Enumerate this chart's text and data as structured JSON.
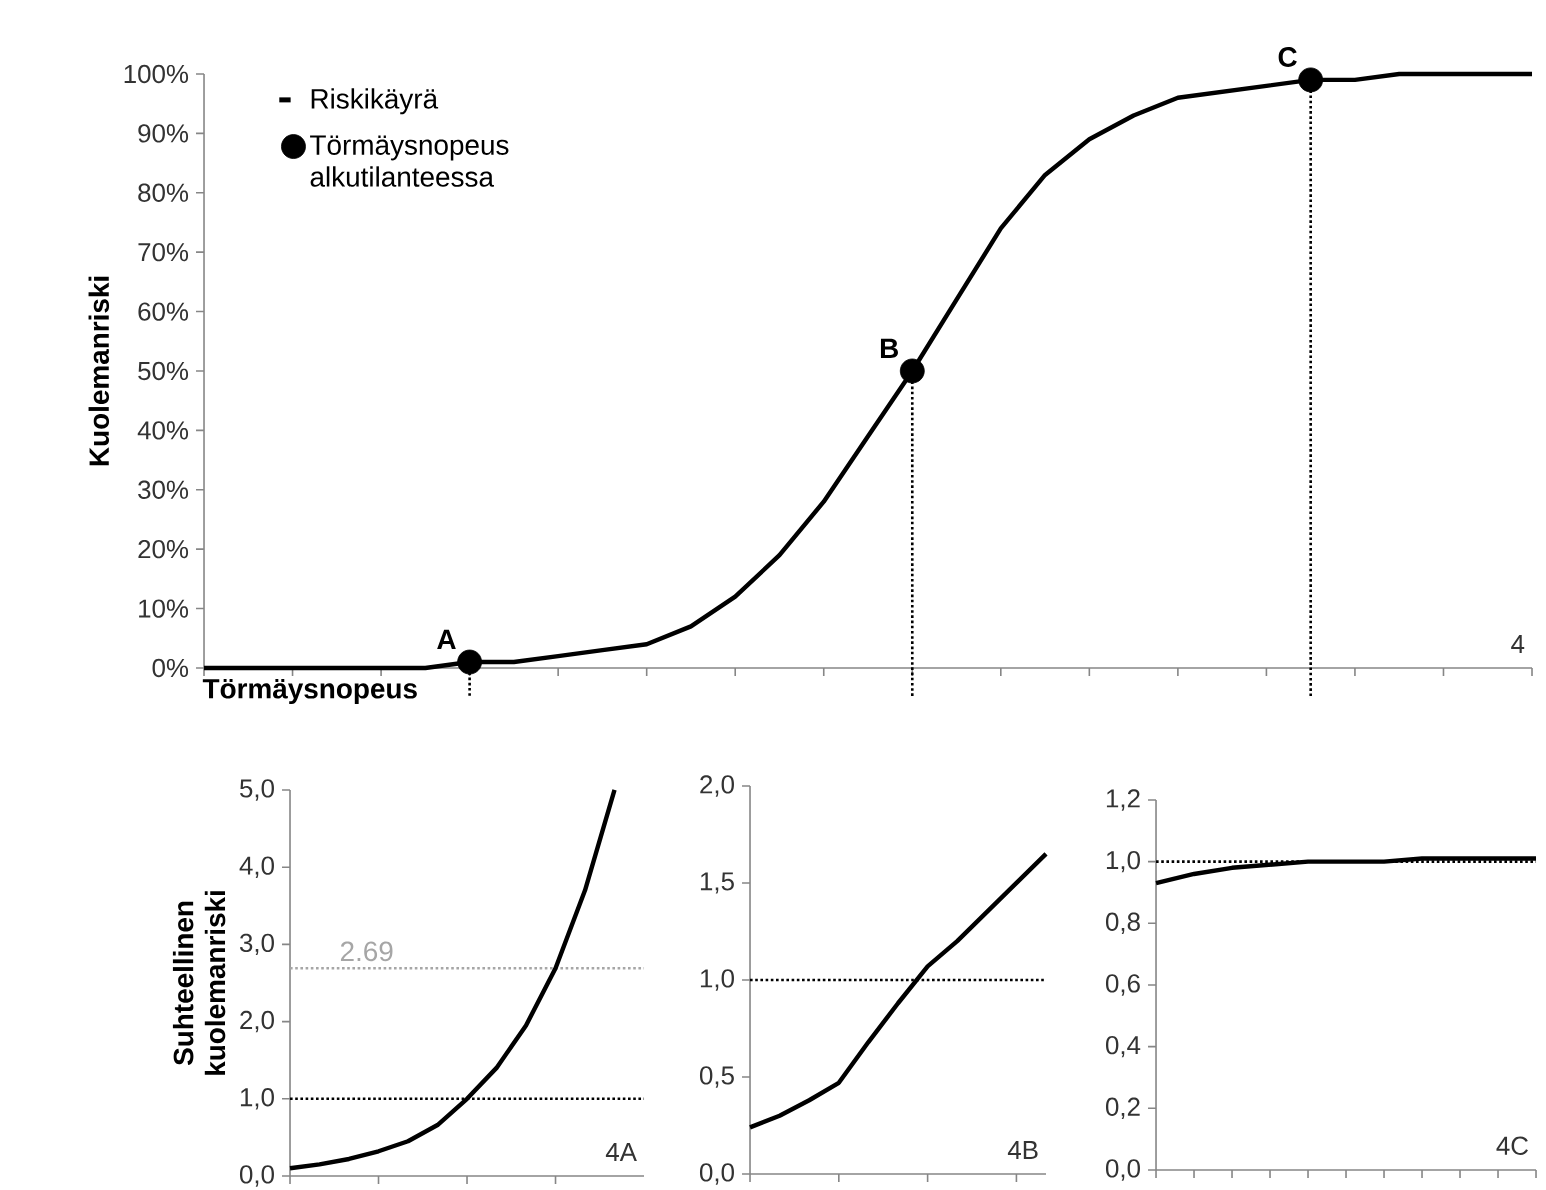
{
  "chart_data": [
    {
      "type": "line",
      "ylabel": "Kuolemanriski",
      "xlabel": "Törmäysnopeus",
      "categories": [
        null,
        null,
        null,
        null,
        null,
        null,
        null,
        null,
        null,
        null,
        null,
        null,
        null,
        null,
        null,
        null,
        null,
        null,
        null,
        null,
        null,
        null,
        null,
        null,
        null,
        null,
        null,
        null,
        null,
        null,
        null
      ],
      "ylim": [
        0,
        100
      ],
      "yticks": [
        {
          "value": 0,
          "label": "0%"
        },
        {
          "value": 10,
          "label": "10%"
        },
        {
          "value": 20,
          "label": "20%"
        },
        {
          "value": 30,
          "label": "30%"
        },
        {
          "value": 40,
          "label": "40%"
        },
        {
          "value": 50,
          "label": "50%"
        },
        {
          "value": 60,
          "label": "60%"
        },
        {
          "value": 70,
          "label": "70%"
        },
        {
          "value": 80,
          "label": "80%"
        },
        {
          "value": 90,
          "label": "90%"
        },
        {
          "value": 100,
          "label": "100%"
        }
      ],
      "tick_labels": "y",
      "legend": "top left",
      "annotations": [
        "4"
      ],
      "series": [
        {
          "name": "Riskikäyrä",
          "type": "line",
          "color": "#000000",
          "values": [
            0,
            0,
            0,
            0,
            0,
            0,
            1,
            1,
            2,
            3,
            4,
            7,
            12,
            19,
            28,
            39,
            50,
            62,
            74,
            83,
            89,
            93,
            96,
            97,
            98,
            99,
            99,
            100,
            100,
            100,
            100
          ]
        },
        {
          "name": "Törmäysnopeus alkutilanteessa",
          "type": "scatter",
          "marker": "circle",
          "color": "#000000",
          "values": [
            null,
            null,
            null,
            null,
            null,
            null,
            1,
            null,
            null,
            null,
            null,
            null,
            null,
            null,
            null,
            null,
            50,
            null,
            null,
            null,
            null,
            null,
            null,
            null,
            null,
            99,
            null,
            null,
            null,
            null,
            null
          ],
          "value_labels": [
            null,
            null,
            null,
            null,
            null,
            null,
            "A",
            null,
            null,
            null,
            null,
            null,
            null,
            null,
            null,
            null,
            "B",
            null,
            null,
            null,
            null,
            null,
            null,
            null,
            null,
            "C",
            null,
            null,
            null,
            null,
            null
          ]
        }
      ]
    },
    {
      "type": "line",
      "ylabel": "Suhteellinen kuolemanriski",
      "categories": [
        null,
        null,
        null,
        null,
        null,
        null,
        null,
        null,
        null,
        null,
        null,
        null
      ],
      "ylim": [
        0,
        5
      ],
      "yticks": [
        {
          "value": 0,
          "label": "0,0"
        },
        {
          "value": 1,
          "label": "1,0"
        },
        {
          "value": 2,
          "label": "2,0"
        },
        {
          "value": 3,
          "label": "3,0"
        },
        {
          "value": 4,
          "label": "4,0"
        },
        {
          "value": 5,
          "label": "5,0"
        }
      ],
      "tick_labels": "y",
      "annotations": [
        "4A"
      ],
      "ref_lines": [
        {
          "axis": "y",
          "value": 1,
          "color": "#000000",
          "line_style": "dotted"
        },
        {
          "axis": "y",
          "value": 2.69,
          "label": "2.69",
          "color": "#a6a6a6",
          "line_style": "dotted"
        }
      ],
      "series": [
        {
          "color": "#000000",
          "values": [
            0.1,
            0.15,
            0.22,
            0.32,
            0.45,
            0.66,
            1.0,
            1.4,
            1.95,
            2.69,
            3.7,
            5.0
          ]
        }
      ]
    },
    {
      "type": "line",
      "categories": [
        null,
        null,
        null,
        null,
        null,
        null,
        null,
        null,
        null,
        null,
        null
      ],
      "ylim": [
        0,
        2
      ],
      "yticks": [
        {
          "value": 0,
          "label": "0,0"
        },
        {
          "value": 0.5,
          "label": "0,5"
        },
        {
          "value": 1,
          "label": "1,0"
        },
        {
          "value": 1.5,
          "label": "1,5"
        },
        {
          "value": 2,
          "label": "2,0"
        }
      ],
      "tick_labels": "y",
      "annotations": [
        "4B"
      ],
      "ref_lines": [
        {
          "axis": "y",
          "value": 1,
          "color": "#000000",
          "line_style": "dotted"
        }
      ],
      "series": [
        {
          "color": "#000000",
          "values": [
            0.24,
            0.3,
            0.38,
            0.47,
            0.68,
            0.88,
            1.07,
            1.2,
            1.35,
            1.5,
            1.65
          ]
        }
      ]
    },
    {
      "type": "line",
      "categories": [
        null,
        null,
        null,
        null,
        null,
        null,
        null,
        null,
        null,
        null,
        null
      ],
      "ylim": [
        0,
        1.2
      ],
      "yticks": [
        {
          "value": 0,
          "label": "0,0"
        },
        {
          "value": 0.2,
          "label": "0,2"
        },
        {
          "value": 0.4,
          "label": "0,4"
        },
        {
          "value": 0.6,
          "label": "0,6"
        },
        {
          "value": 0.8,
          "label": "0,8"
        },
        {
          "value": 1,
          "label": "1,0"
        },
        {
          "value": 1.2,
          "label": "1,2"
        }
      ],
      "tick_labels": "y",
      "annotations": [
        "4C"
      ],
      "ref_lines": [
        {
          "axis": "y",
          "value": 1,
          "color": "#000000",
          "line_style": "dotted"
        }
      ],
      "series": [
        {
          "color": "#000000",
          "values": [
            0.93,
            0.96,
            0.98,
            0.99,
            1.0,
            1.0,
            1.0,
            1.01,
            1.01,
            1.01,
            1.01
          ]
        }
      ]
    }
  ]
}
